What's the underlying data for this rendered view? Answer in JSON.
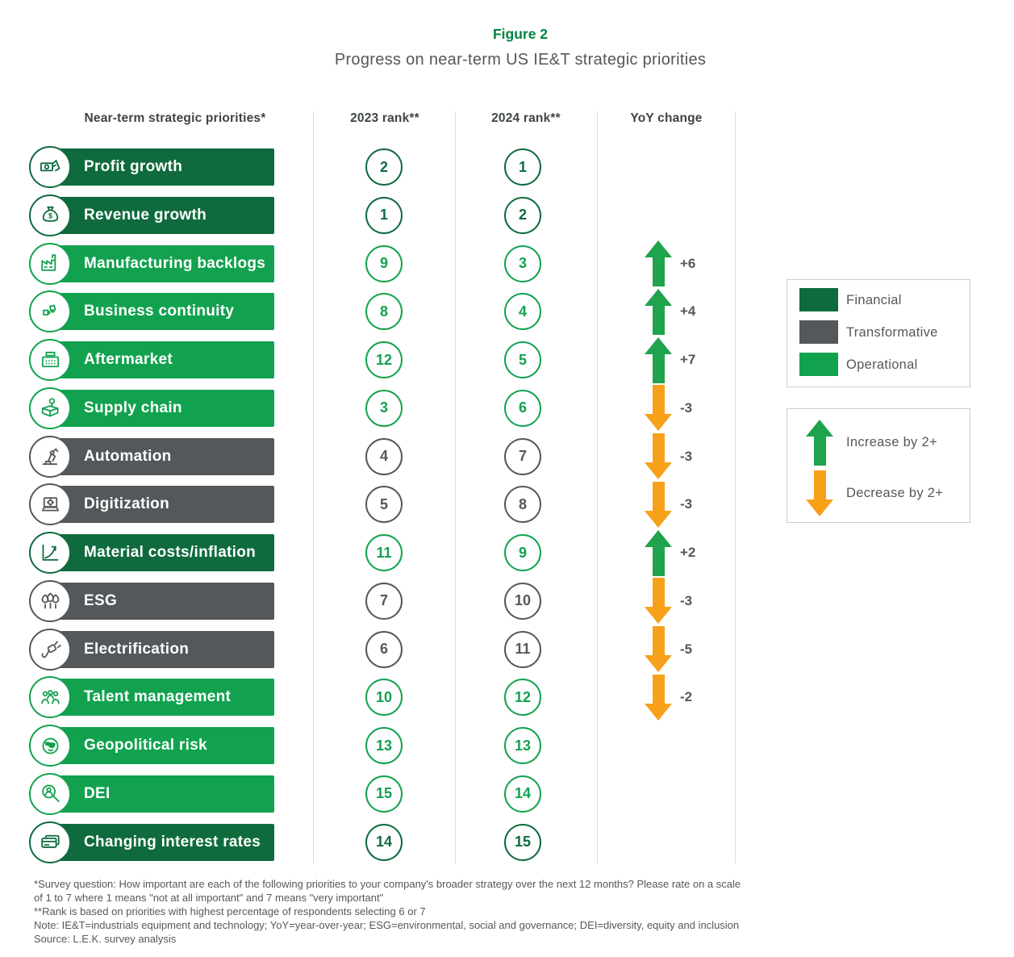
{
  "figure": {
    "label": "Figure 2",
    "title": "Progress on near-term US IE&T strategic priorities"
  },
  "columns": {
    "priorities": "Near-term strategic priorities*",
    "rank2023": "2023 rank**",
    "rank2024": "2024 rank**",
    "yoy": "YoY change"
  },
  "colors": {
    "financial": "#0F6B3D",
    "transformative": "#54585A",
    "operational": "#12A24F",
    "arrow_green": "#1FA34C",
    "arrow_orange": "#F7A11B",
    "title_green": "#00833F",
    "text_gray": "#54585A"
  },
  "rows": [
    {
      "label": "Profit growth",
      "category": "financial",
      "icon": "money-bills-icon",
      "rank2023": "2",
      "rank2024": "1",
      "change": null,
      "dir": null
    },
    {
      "label": "Revenue growth",
      "category": "financial",
      "icon": "money-bag-icon",
      "rank2023": "1",
      "rank2024": "2",
      "change": null,
      "dir": null
    },
    {
      "label": "Manufacturing backlogs",
      "category": "operational",
      "icon": "factory-icon",
      "rank2023": "9",
      "rank2024": "3",
      "change": "+6",
      "dir": "up"
    },
    {
      "label": "Business continuity",
      "category": "operational",
      "icon": "puzzle-icon",
      "rank2023": "8",
      "rank2024": "4",
      "change": "+4",
      "dir": "up"
    },
    {
      "label": "Aftermarket",
      "category": "operational",
      "icon": "cash-register-icon",
      "rank2023": "12",
      "rank2024": "5",
      "change": "+7",
      "dir": "up"
    },
    {
      "label": "Supply chain",
      "category": "operational",
      "icon": "box-pin-icon",
      "rank2023": "3",
      "rank2024": "6",
      "change": "-3",
      "dir": "down"
    },
    {
      "label": "Automation",
      "category": "transformative",
      "icon": "robot-arm-icon",
      "rank2023": "4",
      "rank2024": "7",
      "change": "-3",
      "dir": "down"
    },
    {
      "label": "Digitization",
      "category": "transformative",
      "icon": "laptop-gear-icon",
      "rank2023": "5",
      "rank2024": "8",
      "change": "-3",
      "dir": "down"
    },
    {
      "label": "Material costs/inflation",
      "category": "financial",
      "icon": "chart-curve-icon",
      "rank2023": "11",
      "rank2024": "9",
      "change": "+2",
      "dir": "up",
      "rank_style": "operational"
    },
    {
      "label": "ESG",
      "category": "transformative",
      "icon": "trees-icon",
      "rank2023": "7",
      "rank2024": "10",
      "change": "-3",
      "dir": "down"
    },
    {
      "label": "Electrification",
      "category": "transformative",
      "icon": "plug-icon",
      "rank2023": "6",
      "rank2024": "11",
      "change": "-5",
      "dir": "down"
    },
    {
      "label": "Talent management",
      "category": "operational",
      "icon": "people-icon",
      "rank2023": "10",
      "rank2024": "12",
      "change": "-2",
      "dir": "down"
    },
    {
      "label": "Geopolitical risk",
      "category": "operational",
      "icon": "globe-icon",
      "rank2023": "13",
      "rank2024": "13",
      "change": null,
      "dir": null
    },
    {
      "label": "DEI",
      "category": "operational",
      "icon": "magnifier-person-icon",
      "rank2023": "15",
      "rank2024": "14",
      "change": null,
      "dir": null
    },
    {
      "label": "Changing interest rates",
      "category": "financial",
      "icon": "credit-cards-icon",
      "rank2023": "14",
      "rank2024": "15",
      "change": null,
      "dir": null
    }
  ],
  "legend_categories": [
    {
      "label": "Financial",
      "key": "financial"
    },
    {
      "label": "Transformative",
      "key": "transformative"
    },
    {
      "label": "Operational",
      "key": "operational"
    }
  ],
  "legend_changes": [
    {
      "label": "Increase by 2+",
      "dir": "up"
    },
    {
      "label": "Decrease by 2+",
      "dir": "down"
    }
  ],
  "footnotes": [
    "*Survey question: How important are each of the following priorities to your company's broader strategy over the next 12 months? Please rate on a scale",
    "of 1 to 7 where 1 means \"not at all important\" and 7 means \"very important\"",
    "**Rank is based on priorities with highest percentage of respondents selecting 6 or 7",
    "Note: IE&T=industrials equipment and technology; YoY=year-over-year; ESG=environmental, social and governance; DEI=diversity, equity and inclusion",
    "Source: L.E.K. survey analysis"
  ],
  "chart_data": {
    "type": "table",
    "title": "Progress on near-term US IE&T strategic priorities",
    "columns": [
      "Near-term strategic priorities",
      "Category",
      "2023 rank",
      "2024 rank",
      "YoY change"
    ],
    "rows": [
      [
        "Profit growth",
        "Financial",
        2,
        1,
        null
      ],
      [
        "Revenue growth",
        "Financial",
        1,
        2,
        null
      ],
      [
        "Manufacturing backlogs",
        "Operational",
        9,
        3,
        6
      ],
      [
        "Business continuity",
        "Operational",
        8,
        4,
        4
      ],
      [
        "Aftermarket",
        "Operational",
        12,
        5,
        7
      ],
      [
        "Supply chain",
        "Operational",
        3,
        6,
        -3
      ],
      [
        "Automation",
        "Transformative",
        4,
        7,
        -3
      ],
      [
        "Digitization",
        "Transformative",
        5,
        8,
        -3
      ],
      [
        "Material costs/inflation",
        "Financial",
        11,
        9,
        2
      ],
      [
        "ESG",
        "Transformative",
        7,
        10,
        -3
      ],
      [
        "Electrification",
        "Transformative",
        6,
        11,
        -5
      ],
      [
        "Talent management",
        "Operational",
        10,
        12,
        -2
      ],
      [
        "Geopolitical risk",
        "Operational",
        13,
        13,
        null
      ],
      [
        "DEI",
        "Operational",
        15,
        14,
        null
      ],
      [
        "Changing interest rates",
        "Financial",
        14,
        15,
        null
      ]
    ],
    "legend": [
      "Financial",
      "Transformative",
      "Operational",
      "Increase by 2+",
      "Decrease by 2+"
    ],
    "notes": "Arrows shown only for YoY rank changes of 2 or more"
  }
}
